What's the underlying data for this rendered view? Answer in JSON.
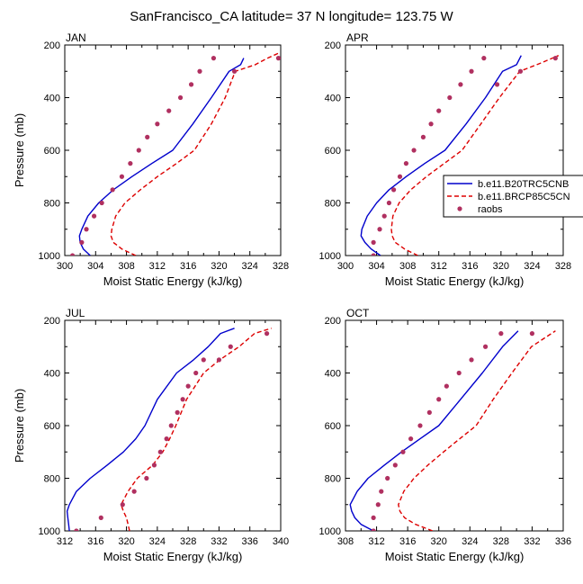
{
  "figure": {
    "title": "SanFrancisco_CA  latitude= 37 N longitude= 123.75 W"
  },
  "legend": {
    "entries": [
      {
        "name": "b.e11.B20TRC5CNB",
        "color": "#0000cc",
        "style": "solid"
      },
      {
        "name": "b.e11.BRCP85C5CN",
        "color": "#dd0000",
        "style": "dashed"
      },
      {
        "name": "raobs",
        "color": "#b03060",
        "style": "marker"
      }
    ]
  },
  "chart_data": [
    {
      "type": "line",
      "panel": "JAN",
      "xlabel": "Moist Static Energy (kJ/kg)",
      "ylabel": "Pressure (mb)",
      "xlim": [
        300,
        328
      ],
      "ylim": [
        1000,
        200
      ],
      "xticks": [
        300,
        304,
        308,
        312,
        316,
        320,
        324,
        328
      ],
      "yticks": [
        200,
        400,
        600,
        800,
        1000
      ],
      "series": [
        {
          "name": "b.e11.B20TRC5CNB",
          "x": [
            303.3,
            302.4,
            302.0,
            301.9,
            302.2,
            303.0,
            304.4,
            306.3,
            308.7,
            311.3,
            314.0,
            316.6,
            319.0,
            321.3,
            322.8,
            323.2
          ],
          "y": [
            1000,
            975,
            950,
            925,
            900,
            850,
            800,
            750,
            700,
            650,
            600,
            500,
            400,
            300,
            275,
            250
          ]
        },
        {
          "name": "b.e11.BRCP85C5CN",
          "x": [
            309.2,
            307.4,
            306.3,
            306.0,
            306.1,
            306.6,
            307.8,
            309.8,
            312.0,
            314.5,
            316.8,
            319.0,
            320.8,
            322.1,
            324.7,
            326.3,
            327.8
          ],
          "y": [
            1000,
            975,
            950,
            925,
            900,
            850,
            800,
            750,
            700,
            650,
            600,
            500,
            400,
            300,
            275,
            250,
            230
          ]
        },
        {
          "name": "raobs",
          "x": [
            301.0,
            302.2,
            302.8,
            303.8,
            304.8,
            306.2,
            307.4,
            308.5,
            309.6,
            310.7,
            312.0,
            313.5,
            315.0,
            316.4,
            317.5,
            319.3,
            322.0,
            327.7
          ],
          "y": [
            1000,
            950,
            900,
            850,
            800,
            750,
            700,
            650,
            600,
            550,
            500,
            450,
            400,
            350,
            300,
            250,
            300,
            250
          ]
        }
      ]
    },
    {
      "type": "line",
      "panel": "APR",
      "xlabel": "Moist Static Energy (kJ/kg)",
      "ylabel": "",
      "xlim": [
        300,
        328
      ],
      "ylim": [
        1000,
        200
      ],
      "xticks": [
        300,
        304,
        308,
        312,
        316,
        320,
        324,
        328
      ],
      "yticks": [
        200,
        400,
        600,
        800,
        1000
      ],
      "series": [
        {
          "name": "b.e11.B20TRC5CNB",
          "x": [
            304.5,
            303.3,
            302.5,
            302.0,
            302.1,
            302.8,
            304.0,
            305.6,
            307.8,
            310.2,
            312.8,
            315.5,
            318.0,
            320.2,
            322.0,
            322.6
          ],
          "y": [
            1000,
            975,
            950,
            925,
            900,
            850,
            800,
            750,
            700,
            650,
            600,
            500,
            400,
            300,
            275,
            240
          ]
        },
        {
          "name": "b.e11.BRCP85C5CN",
          "x": [
            309.3,
            307.6,
            306.4,
            306.0,
            305.9,
            306.1,
            306.9,
            308.4,
            310.4,
            312.7,
            315.0,
            317.4,
            319.8,
            322.4,
            325.0,
            327.4
          ],
          "y": [
            1000,
            975,
            950,
            925,
            900,
            850,
            800,
            750,
            700,
            650,
            600,
            500,
            400,
            300,
            270,
            240
          ]
        },
        {
          "name": "raobs",
          "x": [
            303.6,
            303.6,
            304.4,
            305.0,
            305.6,
            306.2,
            307.0,
            307.8,
            308.8,
            310.0,
            311.0,
            312.0,
            313.4,
            314.8,
            316.2,
            317.8,
            319.5,
            322.5,
            327.0
          ],
          "y": [
            1000,
            950,
            900,
            850,
            800,
            750,
            700,
            650,
            600,
            550,
            500,
            450,
            400,
            350,
            300,
            250,
            350,
            300,
            250
          ]
        }
      ]
    },
    {
      "type": "line",
      "panel": "JUL",
      "xlabel": "Moist Static Energy (kJ/kg)",
      "ylabel": "Pressure (mb)",
      "xlim": [
        312,
        340
      ],
      "ylim": [
        1000,
        200
      ],
      "xticks": [
        312,
        316,
        320,
        324,
        328,
        332,
        336,
        340
      ],
      "yticks": [
        200,
        400,
        600,
        800,
        1000
      ],
      "series": [
        {
          "name": "b.e11.B20TRC5CNB",
          "x": [
            312.6,
            312.5,
            312.4,
            312.3,
            312.6,
            313.5,
            315.3,
            317.5,
            319.6,
            321.2,
            322.4,
            324.0,
            326.5,
            328.7,
            330.6,
            332.2,
            334.0
          ],
          "y": [
            1000,
            975,
            950,
            925,
            900,
            850,
            800,
            750,
            700,
            650,
            600,
            500,
            400,
            350,
            300,
            250,
            230
          ]
        },
        {
          "name": "b.e11.BRCP85C5CN",
          "x": [
            320.4,
            320.2,
            320.0,
            319.6,
            319.3,
            320.2,
            321.4,
            323.4,
            324.7,
            325.6,
            326.4,
            327.8,
            330.0,
            332.1,
            334.6,
            336.6,
            338.8
          ],
          "y": [
            1000,
            975,
            950,
            925,
            900,
            850,
            800,
            750,
            700,
            650,
            600,
            500,
            400,
            350,
            300,
            250,
            230
          ]
        },
        {
          "name": "raobs",
          "x": [
            313.5,
            316.7,
            319.5,
            321.0,
            322.6,
            323.6,
            324.4,
            325.2,
            325.8,
            326.6,
            327.3,
            328.0,
            329.0,
            330.0,
            332.0,
            333.5,
            338.2
          ],
          "y": [
            1000,
            950,
            900,
            850,
            800,
            750,
            700,
            650,
            600,
            550,
            500,
            450,
            400,
            350,
            350,
            300,
            250
          ]
        }
      ]
    },
    {
      "type": "line",
      "panel": "OCT",
      "xlabel": "Moist Static Energy (kJ/kg)",
      "ylabel": "",
      "xlim": [
        308,
        336
      ],
      "ylim": [
        1000,
        200
      ],
      "xticks": [
        308,
        312,
        316,
        320,
        324,
        328,
        332,
        336
      ],
      "yticks": [
        200,
        400,
        600,
        800,
        1000
      ],
      "series": [
        {
          "name": "b.e11.B20TRC5CNB",
          "x": [
            311.6,
            310.0,
            309.2,
            308.8,
            308.6,
            309.5,
            310.9,
            313.0,
            315.2,
            317.6,
            320.0,
            322.8,
            325.6,
            328.2,
            330.2
          ],
          "y": [
            1000,
            975,
            950,
            925,
            900,
            850,
            800,
            750,
            700,
            650,
            600,
            500,
            400,
            300,
            240
          ]
        },
        {
          "name": "b.e11.BRCP85C5CN",
          "x": [
            319.2,
            317.0,
            315.6,
            315.0,
            314.8,
            315.5,
            316.8,
            318.6,
            320.6,
            322.7,
            324.8,
            327.0,
            329.4,
            331.9,
            335.0
          ],
          "y": [
            1000,
            975,
            950,
            925,
            900,
            850,
            800,
            750,
            700,
            650,
            600,
            500,
            400,
            300,
            240
          ]
        },
        {
          "name": "raobs",
          "x": [
            311.6,
            311.6,
            312.2,
            312.6,
            313.4,
            314.4,
            315.4,
            316.4,
            317.6,
            318.8,
            320.0,
            321.0,
            322.6,
            324.2,
            326.0,
            328.0,
            332.0
          ],
          "y": [
            1000,
            950,
            900,
            850,
            800,
            750,
            700,
            650,
            600,
            550,
            500,
            450,
            400,
            350,
            300,
            250,
            250
          ]
        }
      ]
    }
  ]
}
